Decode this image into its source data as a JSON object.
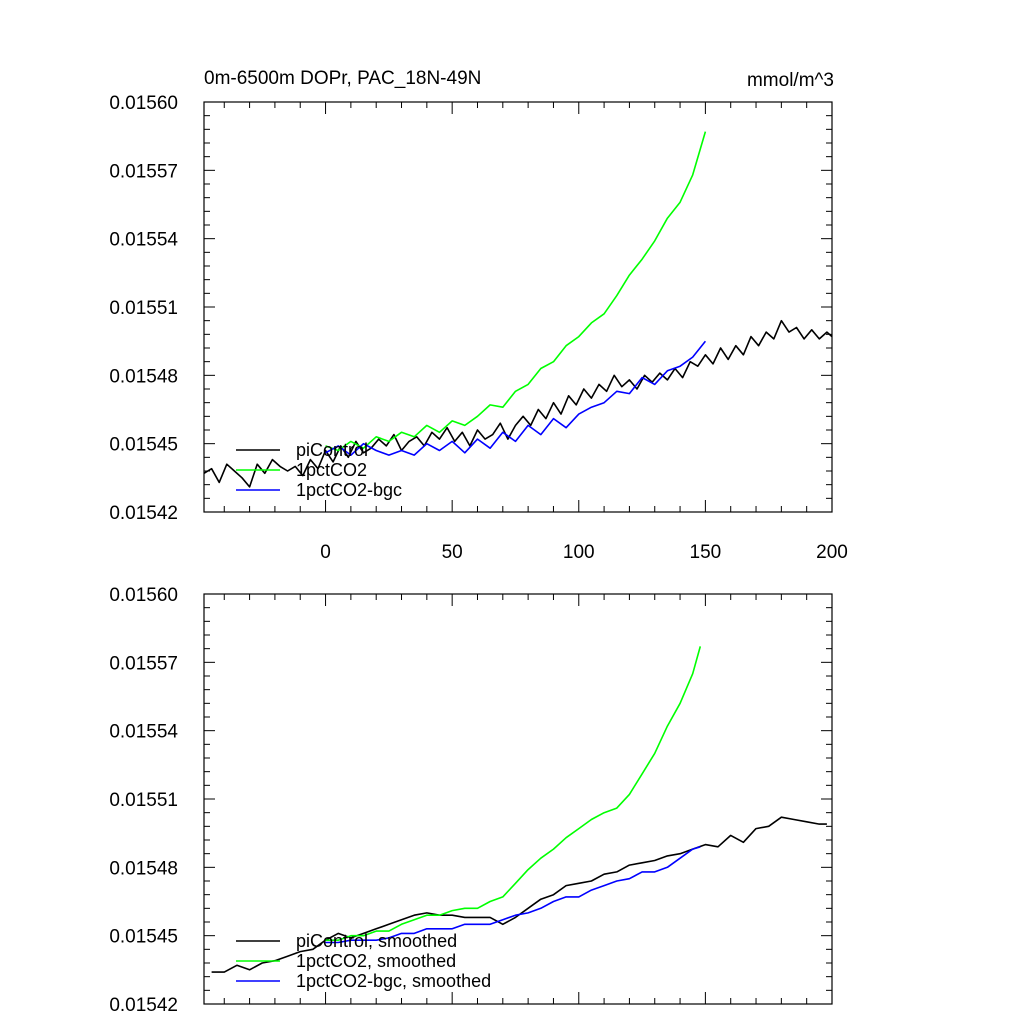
{
  "figure": {
    "title": "0m-6500m DOPr, PAC_18N-49N",
    "units": "mmol/m^3"
  },
  "colors": {
    "piControl": "#000000",
    "1pctCO2": "#00ff00",
    "1pctCO2-bgc": "#0000ff"
  },
  "chart_data": [
    {
      "type": "line",
      "title": "0m-6500m DOPr, PAC_18N-49N",
      "units_label": "mmol/m^3",
      "xlim": [
        -48,
        200
      ],
      "ylim": [
        0.01542,
        0.0156
      ],
      "x_ticks": [
        "0",
        "50",
        "100",
        "150",
        "200"
      ],
      "y_ticks": [
        "0.01542",
        "0.01545",
        "0.01548",
        "0.01551",
        "0.01554",
        "0.01557",
        "0.01560"
      ],
      "grid": false,
      "legend_position": "bottom-left",
      "series": [
        {
          "name": "piControl",
          "x": [
            -48,
            -45,
            -42,
            -39,
            -36,
            -33,
            -30,
            -27,
            -24,
            -21,
            -18,
            -15,
            -12,
            -9,
            -6,
            -3,
            0,
            3,
            6,
            9,
            12,
            15,
            18,
            21,
            24,
            27,
            30,
            33,
            36,
            39,
            42,
            45,
            48,
            51,
            54,
            57,
            60,
            63,
            66,
            69,
            72,
            75,
            78,
            81,
            84,
            87,
            90,
            93,
            96,
            99,
            102,
            105,
            108,
            111,
            114,
            117,
            120,
            123,
            126,
            129,
            132,
            135,
            138,
            141,
            144,
            147,
            150,
            153,
            156,
            159,
            162,
            165,
            168,
            171,
            174,
            177,
            180,
            183,
            186,
            189,
            192,
            195,
            198,
            200
          ],
          "values": [
            0.015437,
            0.015439,
            0.015433,
            0.015441,
            0.015438,
            0.015435,
            0.015431,
            0.015441,
            0.015437,
            0.015443,
            0.01544,
            0.015438,
            0.01544,
            0.015436,
            0.015443,
            0.015439,
            0.015447,
            0.015442,
            0.015449,
            0.015444,
            0.015451,
            0.015446,
            0.015448,
            0.015452,
            0.015449,
            0.015454,
            0.015447,
            0.015451,
            0.015453,
            0.015449,
            0.015455,
            0.015452,
            0.015457,
            0.015451,
            0.015455,
            0.015449,
            0.015456,
            0.015452,
            0.015454,
            0.015459,
            0.015452,
            0.015458,
            0.015462,
            0.015458,
            0.015465,
            0.015461,
            0.015468,
            0.015463,
            0.015471,
            0.015467,
            0.015474,
            0.01547,
            0.015476,
            0.015473,
            0.01548,
            0.015475,
            0.015478,
            0.015474,
            0.01548,
            0.015477,
            0.015481,
            0.015478,
            0.015483,
            0.015479,
            0.015486,
            0.015484,
            0.015489,
            0.015485,
            0.015492,
            0.015487,
            0.015493,
            0.015489,
            0.015497,
            0.015493,
            0.015499,
            0.015496,
            0.015504,
            0.015499,
            0.015501,
            0.015496,
            0.0155,
            0.015496,
            0.015499,
            0.015497
          ]
        },
        {
          "name": "1pctCO2",
          "x": [
            0,
            5,
            10,
            15,
            20,
            25,
            30,
            35,
            40,
            45,
            50,
            55,
            60,
            65,
            70,
            75,
            80,
            85,
            90,
            95,
            100,
            105,
            110,
            115,
            120,
            125,
            130,
            135,
            140,
            145,
            150
          ],
          "values": [
            0.015449,
            0.015447,
            0.015451,
            0.015448,
            0.015453,
            0.015451,
            0.015455,
            0.015453,
            0.015458,
            0.015455,
            0.01546,
            0.015458,
            0.015462,
            0.015467,
            0.015466,
            0.015473,
            0.015476,
            0.015483,
            0.015486,
            0.015493,
            0.015497,
            0.015503,
            0.015507,
            0.015515,
            0.015524,
            0.015531,
            0.015539,
            0.015549,
            0.015556,
            0.015568,
            0.015587
          ]
        },
        {
          "name": "1pctCO2-bgc",
          "x": [
            0,
            5,
            10,
            15,
            20,
            25,
            30,
            35,
            40,
            45,
            50,
            55,
            60,
            65,
            70,
            75,
            80,
            85,
            90,
            95,
            100,
            105,
            110,
            115,
            120,
            125,
            130,
            135,
            140,
            145,
            150
          ],
          "values": [
            0.015446,
            0.015449,
            0.015445,
            0.01545,
            0.015447,
            0.015445,
            0.015447,
            0.015445,
            0.01545,
            0.015447,
            0.015451,
            0.015446,
            0.015452,
            0.015448,
            0.015455,
            0.015451,
            0.015458,
            0.015454,
            0.015461,
            0.015457,
            0.015463,
            0.015466,
            0.015468,
            0.015473,
            0.015472,
            0.015479,
            0.015476,
            0.015482,
            0.015484,
            0.015488,
            0.015495
          ]
        }
      ]
    },
    {
      "type": "line",
      "xlim": [
        -48,
        200
      ],
      "ylim": [
        0.01542,
        0.0156
      ],
      "y_ticks": [
        "0.01542",
        "0.01545",
        "0.01548",
        "0.01551",
        "0.01554",
        "0.01557",
        "0.01560"
      ],
      "grid": false,
      "legend_position": "bottom-left",
      "series": [
        {
          "name": "piControl, smoothed",
          "x": [
            -45,
            -40,
            -35,
            -30,
            -25,
            -20,
            -15,
            -10,
            -5,
            0,
            5,
            10,
            15,
            20,
            25,
            30,
            35,
            40,
            45,
            50,
            55,
            60,
            65,
            70,
            75,
            80,
            85,
            90,
            95,
            100,
            105,
            110,
            115,
            120,
            125,
            130,
            135,
            140,
            145,
            150,
            155,
            160,
            165,
            170,
            175,
            180,
            185,
            190,
            195,
            198
          ],
          "values": [
            0.015434,
            0.015434,
            0.015437,
            0.015435,
            0.015438,
            0.015439,
            0.015441,
            0.015443,
            0.015444,
            0.015448,
            0.015451,
            0.015449,
            0.015451,
            0.015453,
            0.015455,
            0.015457,
            0.015459,
            0.01546,
            0.015459,
            0.015459,
            0.015458,
            0.015458,
            0.015458,
            0.015455,
            0.015458,
            0.015462,
            0.015466,
            0.015468,
            0.015472,
            0.015473,
            0.015474,
            0.015477,
            0.015478,
            0.015481,
            0.015482,
            0.015483,
            0.015485,
            0.015486,
            0.015488,
            0.01549,
            0.015489,
            0.015494,
            0.015491,
            0.015497,
            0.015498,
            0.015502,
            0.015501,
            0.0155,
            0.015499,
            0.015499
          ]
        },
        {
          "name": "1pctCO2, smoothed",
          "x": [
            0,
            5,
            10,
            15,
            20,
            25,
            30,
            35,
            40,
            45,
            50,
            55,
            60,
            65,
            70,
            75,
            80,
            85,
            90,
            95,
            100,
            105,
            110,
            115,
            120,
            125,
            130,
            135,
            140,
            145,
            148
          ],
          "values": [
            0.015448,
            0.015448,
            0.01545,
            0.01545,
            0.015452,
            0.015452,
            0.015455,
            0.015457,
            0.015459,
            0.015459,
            0.015461,
            0.015462,
            0.015462,
            0.015465,
            0.015467,
            0.015473,
            0.015479,
            0.015484,
            0.015488,
            0.015493,
            0.015497,
            0.015501,
            0.015504,
            0.015506,
            0.015512,
            0.015521,
            0.01553,
            0.015542,
            0.015552,
            0.015565,
            0.015577
          ]
        },
        {
          "name": "1pctCO2-bgc, smoothed",
          "x": [
            0,
            5,
            10,
            15,
            20,
            25,
            30,
            35,
            40,
            45,
            50,
            55,
            60,
            65,
            70,
            75,
            80,
            85,
            90,
            95,
            100,
            105,
            110,
            115,
            120,
            125,
            130,
            135,
            140,
            145,
            148
          ],
          "values": [
            0.015447,
            0.015447,
            0.015448,
            0.015448,
            0.015448,
            0.015449,
            0.015451,
            0.015451,
            0.015453,
            0.015453,
            0.015453,
            0.015455,
            0.015455,
            0.015455,
            0.015457,
            0.015459,
            0.01546,
            0.015462,
            0.015465,
            0.015467,
            0.015467,
            0.01547,
            0.015472,
            0.015474,
            0.015475,
            0.015478,
            0.015478,
            0.01548,
            0.015484,
            0.015488,
            0.015489
          ]
        }
      ]
    }
  ]
}
